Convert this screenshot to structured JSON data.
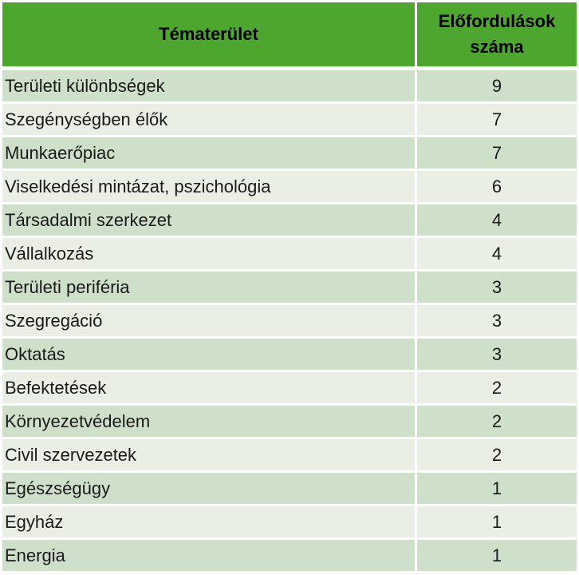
{
  "colors": {
    "header_bg": "#4DA72E",
    "row_odd_bg": "#CFE0CA",
    "row_even_bg": "#E9EFE5",
    "text": "#1A1A1A",
    "border": "#FFFFFF"
  },
  "table": {
    "headers": {
      "topic": "Tématerület",
      "count": "Előfordulások száma"
    },
    "rows": [
      {
        "label": "Területi különbségek",
        "value": "9"
      },
      {
        "label": "Szegénységben élők",
        "value": "7"
      },
      {
        "label": "Munkaerőpiac",
        "value": "7"
      },
      {
        "label": "Viselkedési mintázat, pszichológia",
        "value": "6"
      },
      {
        "label": "Társadalmi szerkezet",
        "value": "4"
      },
      {
        "label": "Vállalkozás",
        "value": "4"
      },
      {
        "label": "Területi periféria",
        "value": "3"
      },
      {
        "label": "Szegregáció",
        "value": "3"
      },
      {
        "label": "Oktatás",
        "value": "3"
      },
      {
        "label": "Befektetések",
        "value": "2"
      },
      {
        "label": "Környezetvédelem",
        "value": "2"
      },
      {
        "label": "Civil szervezetek",
        "value": "2"
      },
      {
        "label": "Egészségügy",
        "value": "1"
      },
      {
        "label": "Egyház",
        "value": "1"
      },
      {
        "label": "Energia",
        "value": "1"
      }
    ]
  },
  "chart_data": {
    "type": "table",
    "title": "",
    "columns": [
      "Tématerület",
      "Előfordulások száma"
    ],
    "rows": [
      [
        "Területi különbségek",
        9
      ],
      [
        "Szegénységben élők",
        7
      ],
      [
        "Munkaerőpiac",
        7
      ],
      [
        "Viselkedési mintázat, pszichológia",
        6
      ],
      [
        "Társadalmi szerkezet",
        4
      ],
      [
        "Vállalkozás",
        4
      ],
      [
        "Területi periféria",
        3
      ],
      [
        "Szegregáció",
        3
      ],
      [
        "Oktatás",
        3
      ],
      [
        "Befektetések",
        2
      ],
      [
        "Környezetvédelem",
        2
      ],
      [
        "Civil szervezetek",
        2
      ],
      [
        "Egészségügy",
        1
      ],
      [
        "Egyház",
        1
      ],
      [
        "Energia",
        1
      ]
    ]
  }
}
